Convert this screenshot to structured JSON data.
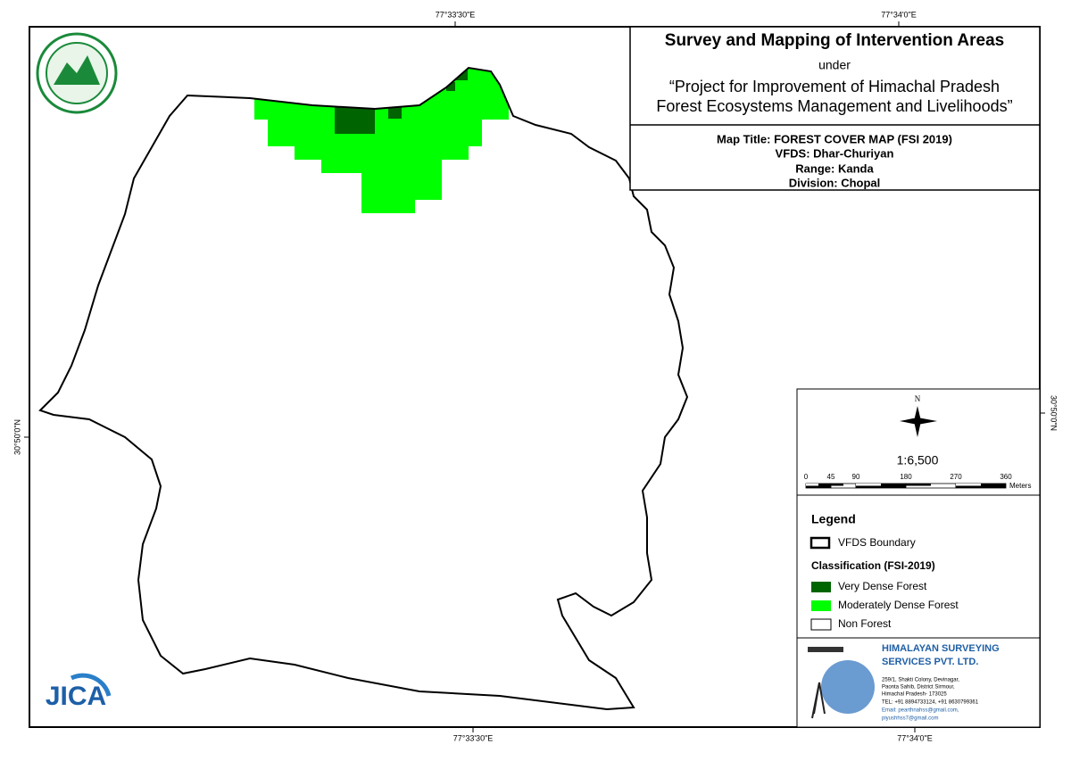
{
  "coords": {
    "top": [
      "77°33'30\"E",
      "77°34'0\"E"
    ],
    "bottom": [
      "77°33'30\"E",
      "77°34'0\"E"
    ],
    "left": "30°50'0\"N",
    "right": "30°50'0\"N"
  },
  "header": {
    "title": "Survey and Mapping of Intervention Areas",
    "under": "under",
    "project": [
      "“Project for Improvement of Himachal Pradesh",
      "Forest Ecosystems Management and Livelihoods”"
    ]
  },
  "map_info": [
    "Map Title: FOREST COVER MAP (FSI 2019)",
    "VFDS: Dhar-Churiyan",
    "Range: Kanda",
    "Division: Chopal"
  ],
  "north": "N",
  "scale": "1:6,500",
  "scale_bar": {
    "ticks": [
      0,
      45,
      90,
      180,
      270,
      360
    ],
    "unit": "Meters"
  },
  "legend": {
    "title": "Legend",
    "boundary": "VFDS Boundary",
    "classification": "Classification (FSI-2019)",
    "items": [
      "Very Dense Forest",
      "Moderately Dense Forest",
      "Non Forest"
    ]
  },
  "company": {
    "name": [
      "HIMALAYAN SURVEYING",
      "SERVICES PVT. LTD."
    ],
    "address": [
      "259/1, Shakti Colony, Devinagar,",
      "Paonta Sahib, District Sirmour,",
      "Himachal Pradesh- 173025",
      "TEL: +91 8894733124, +91 8630799361",
      "Email: pearthnahss@gmail.com,",
      "piyushhss7@gmail.com"
    ]
  },
  "jica": "JICA"
}
